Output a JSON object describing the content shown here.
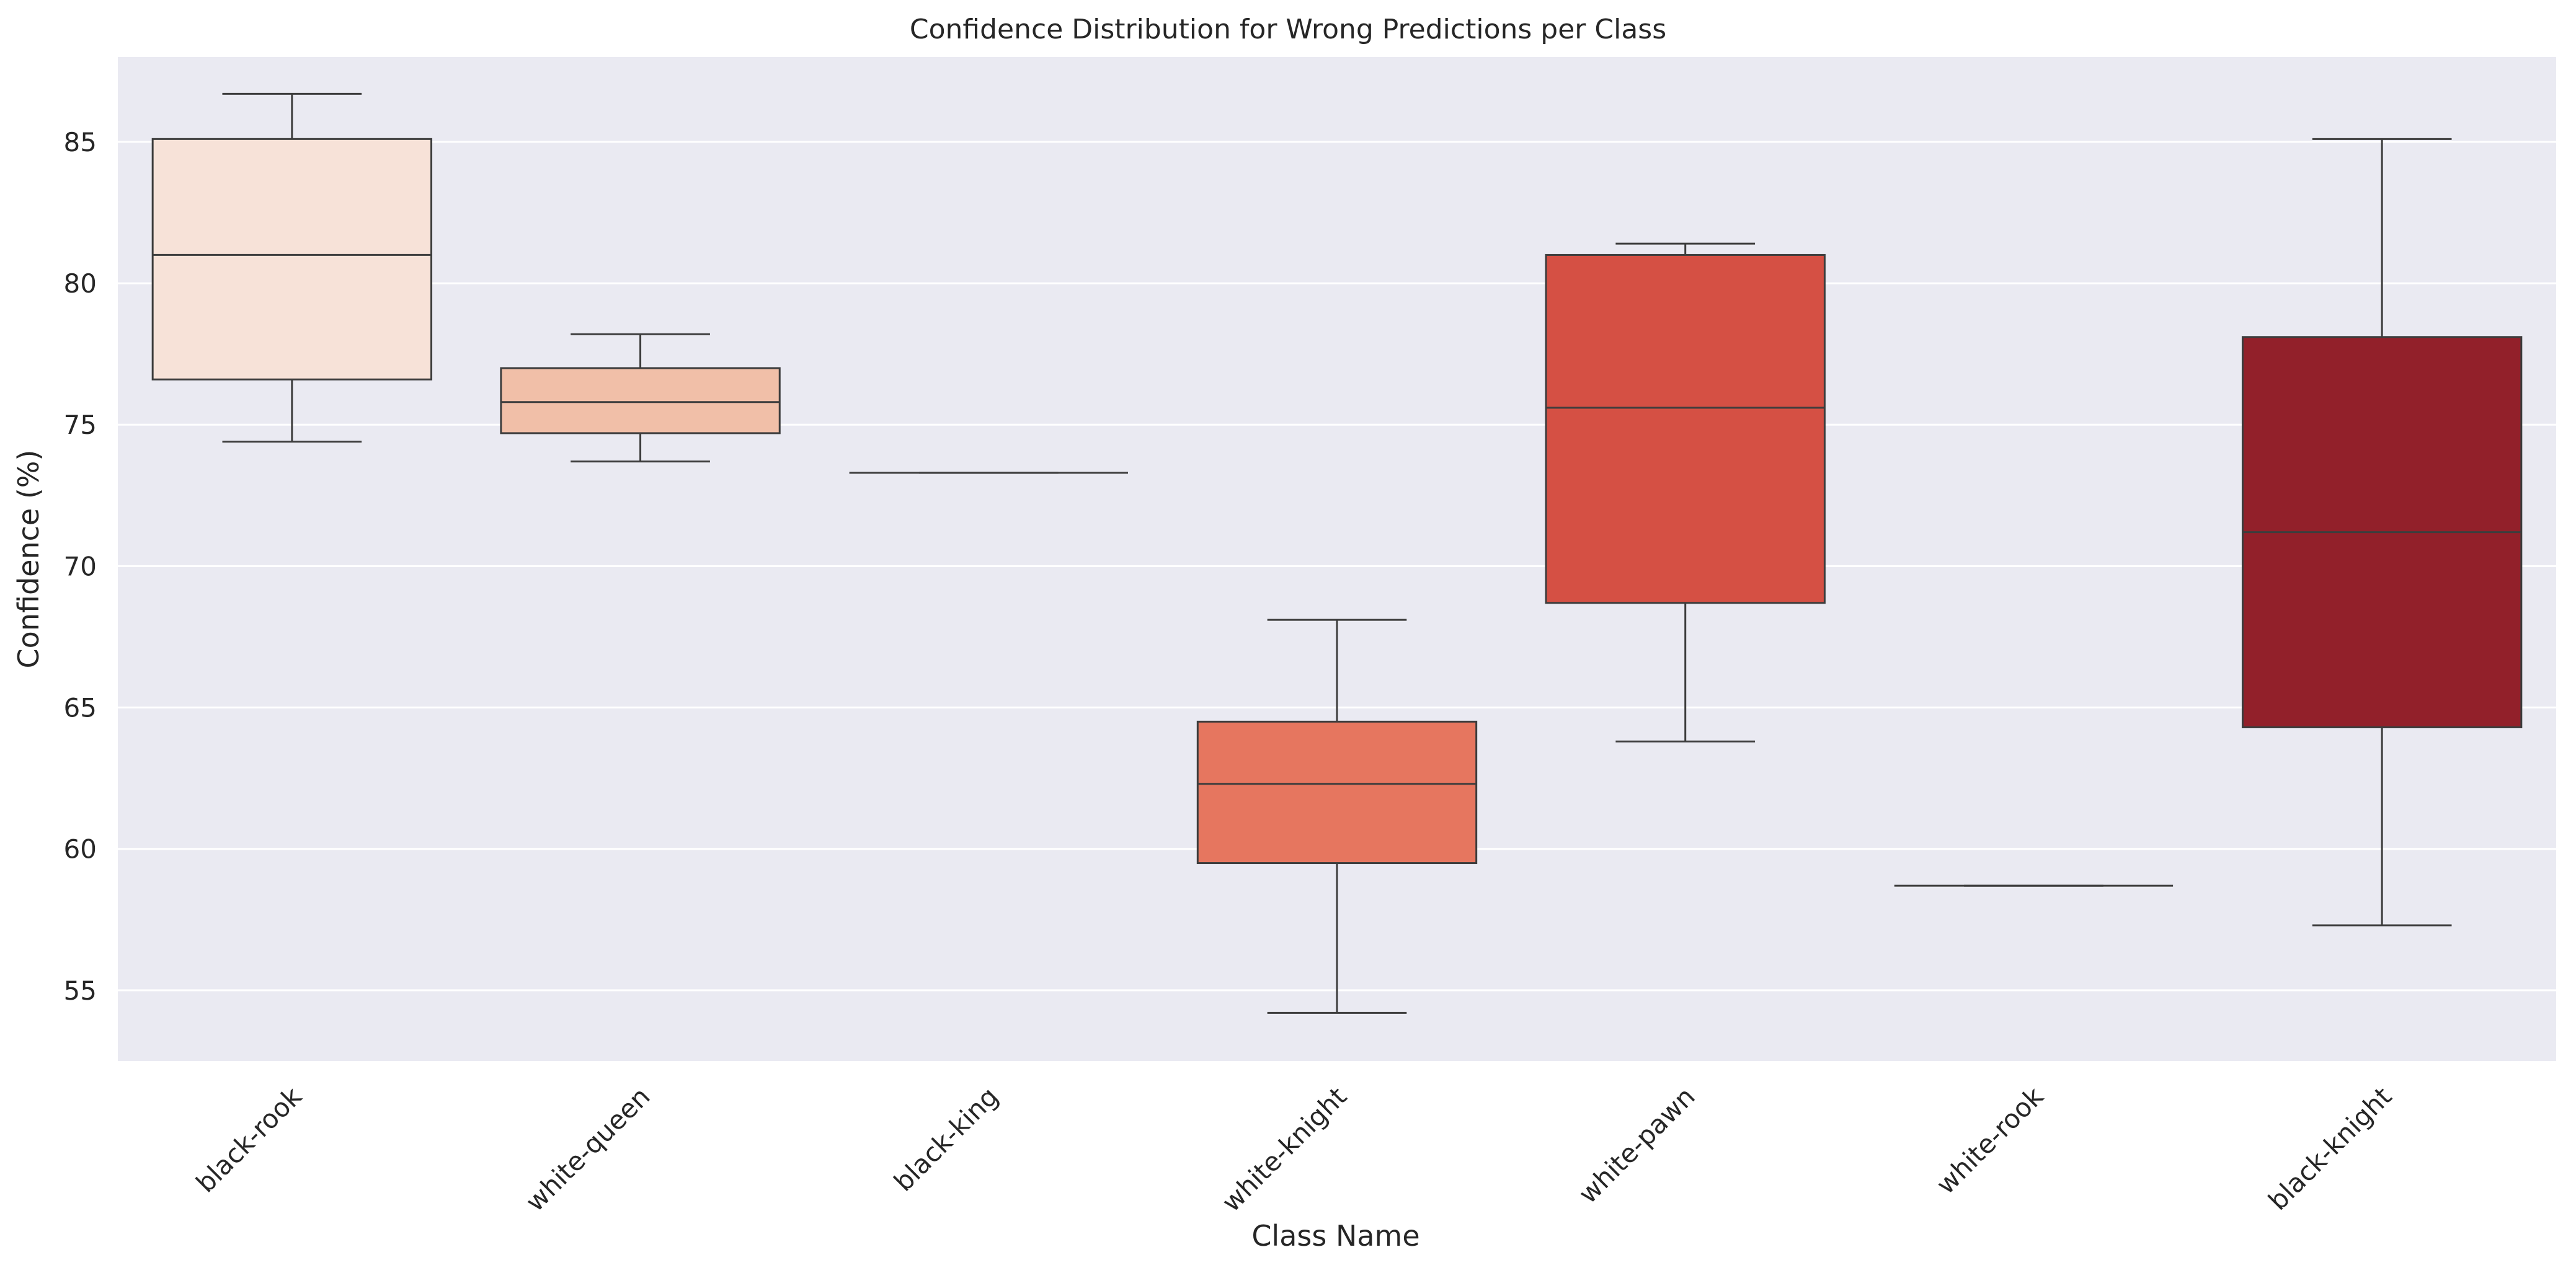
{
  "chart_data": {
    "type": "box",
    "title": "Confidence Distribution for Wrong Predictions per Class",
    "xlabel": "Class Name",
    "ylabel": "Confidence (%)",
    "ylim": [
      52.5,
      88.0
    ],
    "yticks": [
      55,
      60,
      65,
      70,
      75,
      80,
      85
    ],
    "grid": true,
    "categories": [
      "black-rook",
      "white-queen",
      "black-king",
      "white-knight",
      "white-pawn",
      "white-rook",
      "black-knight"
    ],
    "boxes": [
      {
        "whislo": 74.4,
        "q1": 76.6,
        "med": 81.0,
        "q3": 85.1,
        "whishi": 86.7,
        "color": "#f7e2d8"
      },
      {
        "whislo": 73.7,
        "q1": 74.7,
        "med": 75.8,
        "q3": 77.0,
        "whishi": 78.2,
        "color": "#f1bfa8"
      },
      {
        "whislo": 73.3,
        "q1": 73.3,
        "med": 73.3,
        "q3": 73.3,
        "whishi": 73.3,
        "color": "#ec8d70"
      },
      {
        "whislo": 54.2,
        "q1": 59.5,
        "med": 62.3,
        "q3": 64.5,
        "whishi": 68.1,
        "color": "#e6765f"
      },
      {
        "whislo": 63.8,
        "q1": 68.7,
        "med": 75.6,
        "q3": 81.0,
        "whishi": 81.4,
        "color": "#d55044"
      },
      {
        "whislo": 58.7,
        "q1": 58.7,
        "med": 58.7,
        "q3": 58.7,
        "whishi": 58.7,
        "color": "#b8282c"
      },
      {
        "whislo": 57.3,
        "q1": 64.3,
        "med": 71.2,
        "q3": 78.1,
        "whishi": 85.1,
        "color": "#92202a"
      }
    ],
    "colors": {
      "plot_background": "#eaeaf2",
      "grid": "#ffffff",
      "line": "#3d3d3d"
    }
  }
}
